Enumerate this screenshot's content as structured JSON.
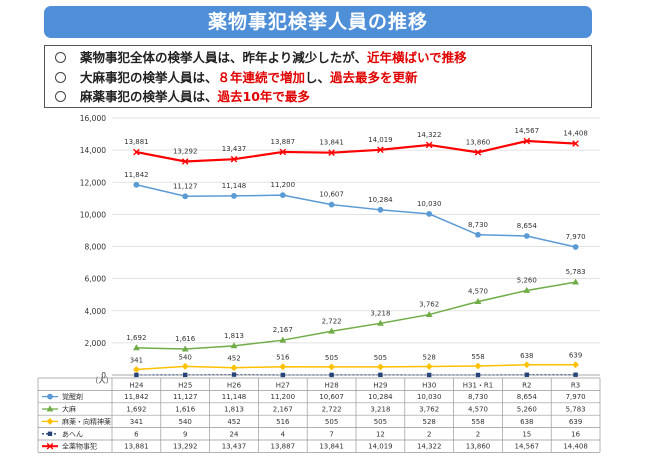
{
  "header": {
    "title": "薬物事犯検挙人員の推移"
  },
  "bullets": [
    {
      "text": "薬物事犯全体の検挙人員は、昨年より減少したが、",
      "highlight": "近年横ばいで推移"
    },
    {
      "text": "大麻事犯の検挙人員は、",
      "highlight": "８年連続で増加",
      "text2": "し、",
      "highlight2": "過去最多を更新"
    },
    {
      "text": "麻薬事犯の検挙人員は、",
      "highlight": "過去10年で最多"
    }
  ],
  "chart_data": {
    "type": "line",
    "unit_label": "（人）",
    "categories": [
      "H24",
      "H25",
      "H26",
      "H27",
      "H28",
      "H29",
      "H30",
      "H31・R1",
      "R2",
      "R3"
    ],
    "ylim": [
      0,
      16000
    ],
    "yticks": [
      "0",
      "2,000",
      "4,000",
      "6,000",
      "8,000",
      "10,000",
      "12,000",
      "14,000",
      "16,000"
    ],
    "series": [
      {
        "name": "覚醒剤",
        "color": "#5b9bd5",
        "marker": "circle",
        "values": [
          11842,
          11127,
          11148,
          11200,
          10607,
          10284,
          10030,
          8730,
          8654,
          7970
        ],
        "labels": [
          "11,842",
          "11,127",
          "11,148",
          "11,200",
          "10,607",
          "10,284",
          "10,030",
          "8,730",
          "8,654",
          "7,970"
        ]
      },
      {
        "name": "大麻",
        "color": "#70ad47",
        "marker": "triangle",
        "values": [
          1692,
          1616,
          1813,
          2167,
          2722,
          3218,
          3762,
          4570,
          5260,
          5783
        ],
        "labels": [
          "1,692",
          "1,616",
          "1,813",
          "2,167",
          "2,722",
          "3,218",
          "3,762",
          "4,570",
          "5,260",
          "5,783"
        ]
      },
      {
        "name": "麻薬・向精神薬",
        "color": "#ffc000",
        "marker": "diamond",
        "values": [
          341,
          540,
          452,
          516,
          505,
          505,
          528,
          558,
          638,
          639
        ],
        "labels": [
          "341",
          "540",
          "452",
          "516",
          "505",
          "505",
          "528",
          "558",
          "638",
          "639"
        ]
      },
      {
        "name": "あへん",
        "color": "#264478",
        "marker": "square",
        "values": [
          6,
          9,
          24,
          4,
          7,
          12,
          2,
          2,
          15,
          16
        ],
        "labels": [
          "6",
          "9",
          "24",
          "4",
          "7",
          "12",
          "2",
          "2",
          "15",
          "16"
        ]
      },
      {
        "name": "全薬物事犯",
        "color": "#ff0000",
        "marker": "x",
        "values": [
          13881,
          13292,
          13437,
          13887,
          13841,
          14019,
          14322,
          13860,
          14567,
          14408
        ],
        "labels": [
          "13,881",
          "13,292",
          "13,437",
          "13,887",
          "13,841",
          "14,019",
          "14,322",
          "13,860",
          "14,567",
          "14,408"
        ]
      }
    ]
  }
}
